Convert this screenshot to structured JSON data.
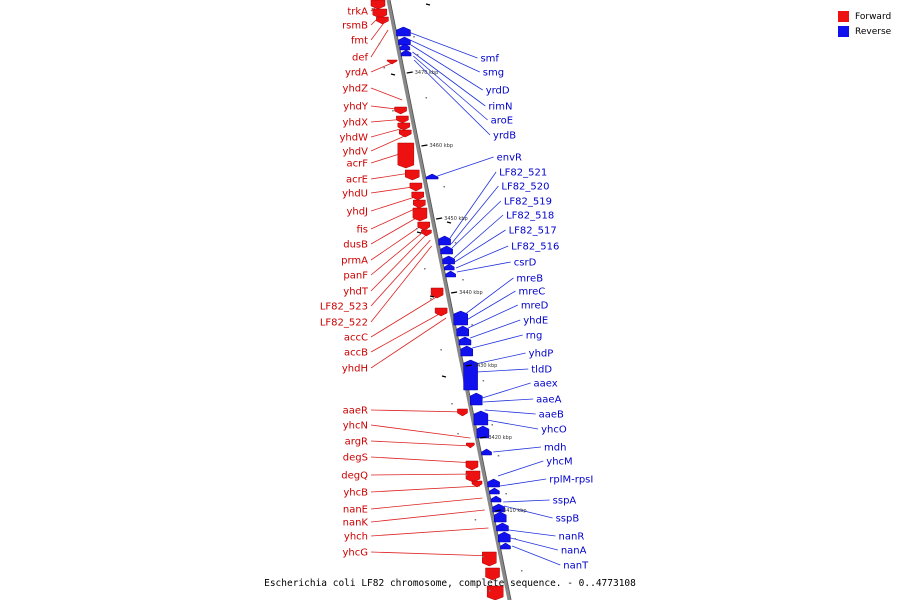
{
  "legend": [
    {
      "label": "Forward",
      "color": "#ee1111"
    },
    {
      "label": "Reverse",
      "color": "#1111ee"
    }
  ],
  "caption": "Escherichia coli LF82 chromosome, complete sequence. - 0..4773108",
  "colors": {
    "forward": "#ee1111",
    "reverse": "#1111ee",
    "backbone": "#888888"
  },
  "ticks": [
    "3470 kbp",
    "3460 kbp",
    "3450 kbp",
    "3440 kbp",
    "3430 kbp",
    "3420 kbp",
    "3410 kbp"
  ],
  "forward_genes": [
    "trkA",
    "rsmB",
    "fmt",
    "def",
    "yrdA",
    "yhdZ",
    "yhdY",
    "yhdX",
    "yhdW",
    "yhdV",
    "acrF",
    "acrE",
    "yhdU",
    "yhdJ",
    "fis",
    "dusB",
    "prmA",
    "panF",
    "yhdT",
    "LF82_523",
    "LF82_522",
    "accC",
    "accB",
    "yhdH",
    "aaeR",
    "yhcN",
    "argR",
    "degS",
    "degQ",
    "yhcB",
    "nanE",
    "nanK",
    "yhch",
    "yhcG"
  ],
  "reverse_genes": [
    "smf",
    "smg",
    "yrdD",
    "rimN",
    "aroE",
    "yrdB",
    "envR",
    "LF82_521",
    "LF82_520",
    "LF82_519",
    "LF82_518",
    "LF82_517",
    "LF82_516",
    "csrD",
    "mreB",
    "mreC",
    "mreD",
    "yhdE",
    "rng",
    "yhdP",
    "tldD",
    "aaex",
    "aaeA",
    "aaeB",
    "yhcO",
    "mdh",
    "yhcM",
    "rplM-rpsI",
    "sspA",
    "sspB",
    "nanR",
    "nanA",
    "nanT"
  ]
}
